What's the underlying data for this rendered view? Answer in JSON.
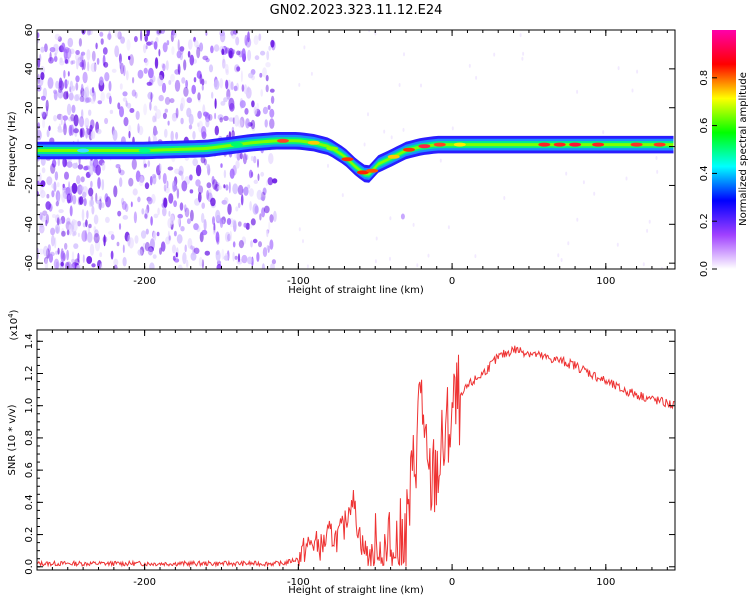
{
  "figure_title": "GN02.2023.323.11.12.E24",
  "chart_data": [
    {
      "type": "heatmap",
      "xlabel": "Height of straight line (km)",
      "ylabel": "Frequency (Hz)",
      "xlim": [
        -270,
        145
      ],
      "ylim": [
        -63,
        60
      ],
      "x_ticks": [
        -200,
        -100,
        0,
        100
      ],
      "x_tick_labels": [
        "-200",
        "-100",
        "0",
        "100"
      ],
      "y_ticks": [
        -60,
        -40,
        -20,
        0,
        20,
        40,
        60
      ],
      "y_tick_labels": [
        "-60",
        "-40",
        "-20",
        "0",
        "20",
        "40",
        "60"
      ],
      "noise_region_x": [
        -270,
        -115
      ],
      "ridge": {
        "x": [
          -270,
          -240,
          -200,
          -160,
          -130,
          -115,
          -100,
          -90,
          -80,
          -70,
          -62,
          -55,
          -48,
          -40,
          -30,
          -20,
          -10,
          0,
          20,
          40,
          60,
          80,
          100,
          120,
          145
        ],
        "y": [
          -2,
          -2,
          -2,
          -1,
          2,
          3,
          3,
          2,
          0,
          -5,
          -11,
          -15,
          -9,
          -6,
          -2,
          0,
          1,
          1,
          1,
          1,
          1,
          1,
          1,
          1,
          1
        ]
      },
      "colorbar": {
        "label": "Normalized spectral amplitude",
        "range": [
          0.0,
          1.0
        ],
        "ticks": [
          0.0,
          0.2,
          0.4,
          0.6,
          0.8
        ],
        "tick_labels": [
          "0.0",
          "0.2",
          "0.4",
          "0.6",
          "0.8"
        ],
        "colors": [
          "#ffffff",
          "#a040ff",
          "#0000ff",
          "#00ffff",
          "#00ff00",
          "#ffff00",
          "#ff0000",
          "#ff00aa"
        ]
      },
      "grid": false
    },
    {
      "type": "line",
      "xlabel": "Height of straight line (km)",
      "ylabel": "SNR (10 * v/v)",
      "y_multiplier_label": "(x10",
      "y_multiplier_exponent": "4",
      "y_multiplier_close": ")",
      "xlim": [
        -270,
        145
      ],
      "ylim": [
        -0.02,
        1.47
      ],
      "x_ticks": [
        -200,
        -100,
        0,
        100
      ],
      "x_tick_labels": [
        "-200",
        "-100",
        "0",
        "100"
      ],
      "y_ticks": [
        0.0,
        0.2,
        0.4,
        0.6,
        0.8,
        1.0,
        1.2,
        1.4
      ],
      "y_tick_labels": [
        "0.0",
        "0.2",
        "0.4",
        "0.6",
        "0.8",
        "1.0",
        "1.2",
        "1.4"
      ],
      "series": [
        {
          "color": "#ee3333",
          "x": [
            -270,
            -250,
            -230,
            -210,
            -190,
            -170,
            -150,
            -130,
            -110,
            -100,
            -95,
            -90,
            -85,
            -80,
            -75,
            -70,
            -65,
            -62,
            -58,
            -55,
            -50,
            -45,
            -40,
            -35,
            -30,
            -25,
            -22,
            -20,
            -18,
            -15,
            -12,
            -10,
            -5,
            0,
            10,
            20,
            30,
            40,
            50,
            60,
            70,
            80,
            90,
            100,
            110,
            120,
            130,
            145
          ],
          "values": [
            0.02,
            0.02,
            0.02,
            0.02,
            0.02,
            0.02,
            0.02,
            0.02,
            0.02,
            0.05,
            0.12,
            0.15,
            0.12,
            0.2,
            0.18,
            0.25,
            0.45,
            0.28,
            0.12,
            0.08,
            0.05,
            0.06,
            0.07,
            0.1,
            0.2,
            0.6,
            0.9,
            1.2,
            0.7,
            0.5,
            0.55,
            0.6,
            0.75,
            0.95,
            1.12,
            1.2,
            1.3,
            1.35,
            1.33,
            1.3,
            1.28,
            1.25,
            1.2,
            1.15,
            1.1,
            1.07,
            1.04,
            1.0
          ]
        }
      ],
      "grid": false
    }
  ]
}
